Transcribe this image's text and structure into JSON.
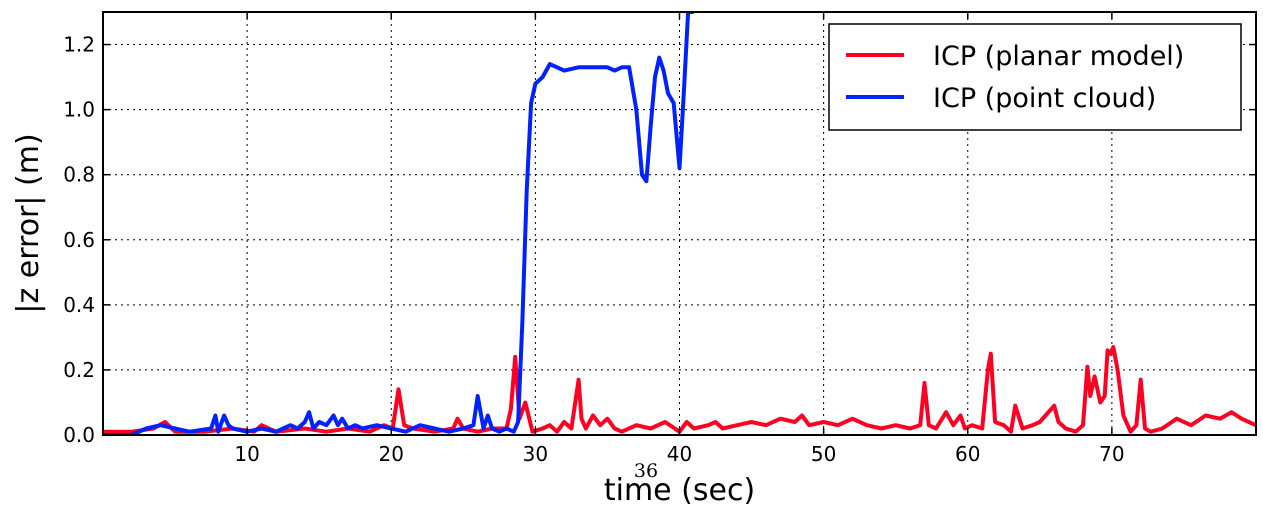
{
  "page_number": "36",
  "chart_data": {
    "type": "line",
    "xlabel": "time (sec)",
    "ylabel": "|z error| (m)",
    "xlim": [
      0,
      80
    ],
    "ylim": [
      0,
      1.3
    ],
    "xticks": [
      10,
      20,
      30,
      40,
      50,
      60,
      70
    ],
    "xtick_labels": [
      "10",
      "20",
      "30",
      "40",
      "50",
      "60",
      "70"
    ],
    "yticks": [
      0.0,
      0.2,
      0.4,
      0.6,
      0.8,
      1.0,
      1.2
    ],
    "ytick_labels": [
      "0.0",
      "0.2",
      "0.4",
      "0.6",
      "0.8",
      "1.0",
      "1.2"
    ],
    "grid": true,
    "legend_position": "top-right",
    "series": [
      {
        "name": "ICP (planar model)",
        "color": "#ff0022",
        "x": [
          0,
          2,
          3.5,
          4.3,
          5,
          7,
          9,
          10.5,
          11,
          12,
          14,
          15.5,
          17,
          18.5,
          19.5,
          20.1,
          20.5,
          20.9,
          21.5,
          23,
          24.3,
          24.6,
          25,
          26,
          27,
          28,
          28.3,
          28.6,
          28.9,
          29.3,
          29.8,
          30.5,
          31,
          31.5,
          32,
          32.5,
          33,
          33.2,
          33.5,
          34,
          34.5,
          35,
          35.5,
          36,
          37,
          38,
          39,
          40,
          40.5,
          41,
          42,
          42.5,
          43,
          44,
          45,
          46,
          47,
          48,
          48.5,
          49,
          50,
          51,
          52,
          53,
          54,
          55,
          56,
          56.7,
          57,
          57.3,
          57.8,
          58.5,
          59,
          59.5,
          59.8,
          60.3,
          61,
          61.4,
          61.6,
          61.9,
          62.5,
          63,
          63.3,
          63.8,
          64.5,
          65,
          66,
          66.3,
          66.8,
          67.5,
          68,
          68.3,
          68.5,
          68.8,
          69.2,
          69.5,
          69.7,
          69.9,
          70.1,
          70.4,
          70.8,
          71.3,
          71.7,
          72,
          72.3,
          72.7,
          73.5,
          74.5,
          75.5,
          76.5,
          77.5,
          78.3,
          79,
          79.5,
          80
        ],
        "values": [
          0.01,
          0.01,
          0.02,
          0.04,
          0.01,
          0.01,
          0.02,
          0.01,
          0.03,
          0.01,
          0.02,
          0.01,
          0.02,
          0.01,
          0.03,
          0.02,
          0.14,
          0.03,
          0.02,
          0.01,
          0.02,
          0.05,
          0.02,
          0.01,
          0.02,
          0.02,
          0.08,
          0.24,
          0.05,
          0.1,
          0.01,
          0.02,
          0.03,
          0.01,
          0.04,
          0.02,
          0.17,
          0.05,
          0.02,
          0.06,
          0.03,
          0.05,
          0.02,
          0.01,
          0.03,
          0.02,
          0.04,
          0.01,
          0.04,
          0.02,
          0.03,
          0.04,
          0.02,
          0.03,
          0.04,
          0.03,
          0.05,
          0.04,
          0.06,
          0.03,
          0.04,
          0.03,
          0.05,
          0.03,
          0.02,
          0.03,
          0.02,
          0.03,
          0.16,
          0.03,
          0.02,
          0.07,
          0.03,
          0.06,
          0.02,
          0.03,
          0.02,
          0.2,
          0.25,
          0.04,
          0.03,
          0.01,
          0.09,
          0.02,
          0.03,
          0.04,
          0.09,
          0.04,
          0.02,
          0.01,
          0.03,
          0.21,
          0.12,
          0.18,
          0.1,
          0.12,
          0.26,
          0.25,
          0.27,
          0.2,
          0.06,
          0.01,
          0.03,
          0.17,
          0.02,
          0.01,
          0.02,
          0.05,
          0.03,
          0.06,
          0.05,
          0.07,
          0.05,
          0.04,
          0.03
        ]
      },
      {
        "name": "ICP (point cloud)",
        "color": "#0022ff",
        "x": [
          0,
          2,
          3,
          4,
          5,
          6,
          7.5,
          7.8,
          8,
          8.4,
          8.7,
          9,
          10,
          11,
          12,
          13,
          13.5,
          14,
          14.3,
          14.6,
          15,
          15.5,
          16,
          16.3,
          16.6,
          17,
          17.5,
          18,
          19,
          20,
          21,
          22,
          23,
          24,
          25,
          25.7,
          26,
          26.4,
          26.7,
          27,
          27.5,
          28,
          28.5,
          28.8,
          29.1,
          29.4,
          29.7,
          30,
          30.5,
          31,
          31.5,
          32,
          33,
          34,
          35,
          35.5,
          36,
          36.5,
          37,
          37.4,
          37.7,
          38,
          38.3,
          38.6,
          38.9,
          39.2,
          39.6,
          40,
          40.3,
          40.6,
          40.9
        ],
        "values": [
          0.0,
          0.0,
          0.02,
          0.03,
          0.02,
          0.01,
          0.02,
          0.06,
          0.01,
          0.06,
          0.03,
          0.02,
          0.01,
          0.02,
          0.01,
          0.03,
          0.02,
          0.04,
          0.07,
          0.02,
          0.04,
          0.03,
          0.06,
          0.03,
          0.05,
          0.02,
          0.03,
          0.02,
          0.03,
          0.02,
          0.01,
          0.03,
          0.02,
          0.01,
          0.02,
          0.03,
          0.12,
          0.02,
          0.06,
          0.02,
          0.01,
          0.02,
          0.01,
          0.04,
          0.35,
          0.75,
          1.02,
          1.08,
          1.1,
          1.14,
          1.13,
          1.12,
          1.13,
          1.13,
          1.13,
          1.12,
          1.13,
          1.13,
          1.0,
          0.8,
          0.78,
          0.95,
          1.1,
          1.16,
          1.12,
          1.05,
          1.02,
          0.82,
          1.05,
          1.3,
          1.3
        ]
      }
    ]
  }
}
